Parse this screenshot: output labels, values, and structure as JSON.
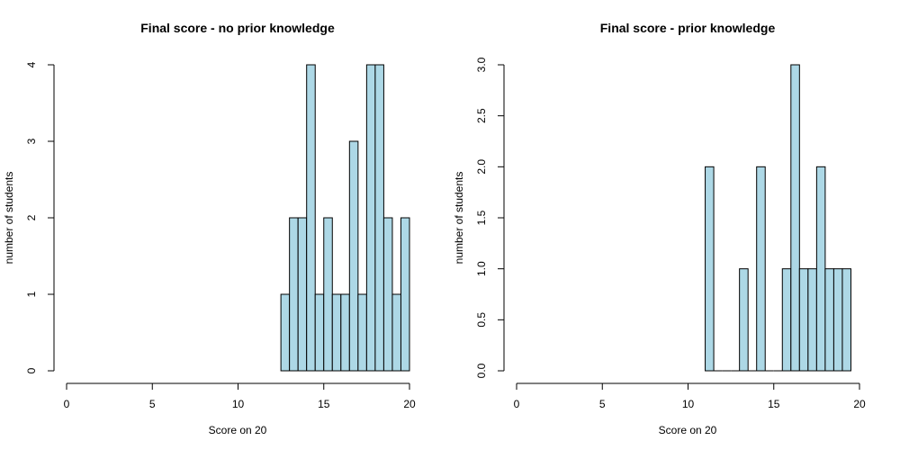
{
  "chart_data": [
    {
      "type": "bar",
      "title": "Final score - no prior knowledge",
      "xlabel": "Score on 20",
      "ylabel": "number of students",
      "xlim": [
        0,
        20
      ],
      "ylim": [
        0,
        4
      ],
      "xticks": [
        0,
        5,
        10,
        15,
        20
      ],
      "yticks": [
        0,
        1,
        2,
        3,
        4
      ],
      "ytick_labels": [
        "0",
        "1",
        "2",
        "3",
        "4"
      ],
      "bin_width": 0.5,
      "bars": [
        {
          "x0": 12.5,
          "value": 1
        },
        {
          "x0": 13.0,
          "value": 2
        },
        {
          "x0": 13.5,
          "value": 2
        },
        {
          "x0": 14.0,
          "value": 4
        },
        {
          "x0": 14.5,
          "value": 1
        },
        {
          "x0": 15.0,
          "value": 2
        },
        {
          "x0": 15.5,
          "value": 1
        },
        {
          "x0": 16.0,
          "value": 1
        },
        {
          "x0": 16.5,
          "value": 3
        },
        {
          "x0": 17.0,
          "value": 1
        },
        {
          "x0": 17.5,
          "value": 4
        },
        {
          "x0": 18.0,
          "value": 4
        },
        {
          "x0": 18.5,
          "value": 2
        },
        {
          "x0": 19.0,
          "value": 1
        },
        {
          "x0": 19.5,
          "value": 2
        }
      ],
      "bar_color": "#add8e6",
      "grid": false
    },
    {
      "type": "bar",
      "title": "Final score - prior knowledge",
      "xlabel": "Score on 20",
      "ylabel": "number of students",
      "xlim": [
        0,
        20
      ],
      "ylim": [
        0,
        3
      ],
      "xticks": [
        0,
        5,
        10,
        15,
        20
      ],
      "yticks": [
        0,
        0.5,
        1,
        1.5,
        2,
        2.5,
        3
      ],
      "ytick_labels": [
        "0.0",
        "0.5",
        "1.0",
        "1.5",
        "2.0",
        "2.5",
        "3.0"
      ],
      "bin_width": 0.5,
      "bars": [
        {
          "x0": 11.0,
          "value": 2
        },
        {
          "x0": 11.5,
          "value": 0
        },
        {
          "x0": 12.0,
          "value": 0
        },
        {
          "x0": 12.5,
          "value": 0
        },
        {
          "x0": 13.0,
          "value": 1
        },
        {
          "x0": 13.5,
          "value": 0
        },
        {
          "x0": 14.0,
          "value": 2
        },
        {
          "x0": 14.5,
          "value": 0
        },
        {
          "x0": 15.0,
          "value": 0
        },
        {
          "x0": 15.5,
          "value": 1
        },
        {
          "x0": 16.0,
          "value": 3
        },
        {
          "x0": 16.5,
          "value": 1
        },
        {
          "x0": 17.0,
          "value": 1
        },
        {
          "x0": 17.5,
          "value": 2
        },
        {
          "x0": 18.0,
          "value": 1
        },
        {
          "x0": 18.5,
          "value": 1
        },
        {
          "x0": 19.0,
          "value": 1
        }
      ],
      "bar_color": "#add8e6",
      "grid": false
    }
  ]
}
